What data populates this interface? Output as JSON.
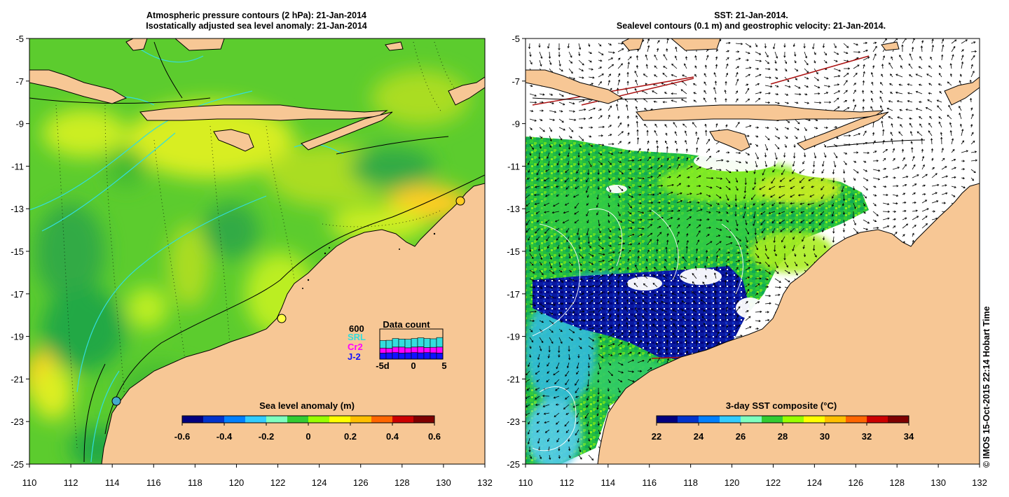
{
  "left_panel": {
    "title_line1": "Atmospheric pressure contours (2 hPa): 21-Jan-2014",
    "title_line2": "Isostatically adjusted sea level anomaly: 21-Jan-2014",
    "colorbar": {
      "label": "Sea level anomaly (m)",
      "ticks": [
        "-0.6",
        "-0.4",
        "-0.2",
        "0",
        "0.2",
        "0.4",
        "0.6"
      ],
      "colors": [
        "#00007f",
        "#0033cc",
        "#0080ff",
        "#33ccff",
        "#7fffbf",
        "#33cc33",
        "#99ff00",
        "#ffff00",
        "#ffbf00",
        "#ff6600",
        "#cc0000",
        "#7f0000"
      ]
    },
    "inset": {
      "title": "Data count",
      "max_label": "600",
      "sources": [
        {
          "name": "SRL",
          "color": "#33dddd"
        },
        {
          "name": "Cr2",
          "color": "#ff00ff"
        },
        {
          "name": "J-2",
          "color": "#1111ff"
        }
      ],
      "x_ticks": [
        "-5d",
        "0",
        "5"
      ],
      "counts": {
        "J-2": [
          120,
          125,
          130,
          120,
          125,
          130,
          125,
          130,
          125,
          120
        ],
        "Cr2": [
          100,
          90,
          110,
          120,
          100,
          110,
          120,
          100,
          110,
          120
        ],
        "SRL": [
          150,
          160,
          170,
          160,
          170,
          170,
          180,
          180,
          170,
          190
        ]
      }
    },
    "land_color": "#f7c795"
  },
  "right_panel": {
    "title_line1": "SST: 21-Jan-2014.",
    "title_line2": "Sealevel contours (0.1 m) and geostrophic velocity: 21-Jan-2014.",
    "colorbar": {
      "label": "3-day SST composite (°C)",
      "ticks": [
        "22",
        "24",
        "26",
        "28",
        "30",
        "32",
        "34"
      ],
      "colors": [
        "#00007f",
        "#0033cc",
        "#0080ff",
        "#33ccff",
        "#7fffbf",
        "#33cc33",
        "#99ff00",
        "#ffff00",
        "#ffbf00",
        "#ff6600",
        "#cc0000",
        "#7f0000"
      ]
    },
    "land_color": "#f7c795"
  },
  "axes": {
    "x_ticks": [
      "110",
      "112",
      "114",
      "116",
      "118",
      "120",
      "122",
      "124",
      "126",
      "128",
      "130",
      "132"
    ],
    "y_ticks": [
      "-5",
      "-7",
      "-9",
      "-11",
      "-13",
      "-15",
      "-17",
      "-19",
      "-21",
      "-23",
      "-25"
    ]
  },
  "credit": "© IMOS 15-Oct-2015 22:14 Hobart Time"
}
